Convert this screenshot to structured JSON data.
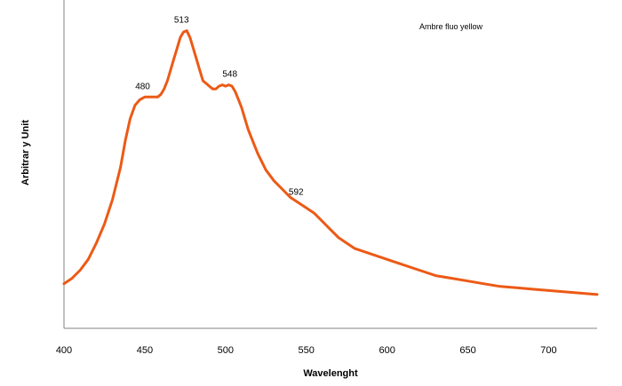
{
  "chart_data": {
    "type": "line",
    "title": "",
    "xlabel": "Wavelenght",
    "ylabel": "Arbitrar y Unit",
    "xlim": [
      400,
      730
    ],
    "ylim": [
      0,
      1
    ],
    "x_ticks": [
      400,
      450,
      500,
      550,
      600,
      650,
      700
    ],
    "grid": false,
    "legend_position": "top-right",
    "series": [
      {
        "name": "Ambre fluo yellow",
        "color": "#ec5a16",
        "x": [
          400,
          405,
          410,
          415,
          420,
          425,
          430,
          435,
          438,
          441,
          444,
          447,
          450,
          455,
          458,
          460,
          462,
          464,
          466,
          468,
          470,
          472,
          474,
          476,
          478,
          480,
          482,
          484,
          486,
          488,
          490,
          492,
          494,
          496,
          498,
          500,
          502,
          504,
          506,
          508,
          510,
          512,
          514,
          516,
          518,
          520,
          525,
          530,
          535,
          540,
          545,
          550,
          555,
          560,
          565,
          570,
          575,
          580,
          590,
          600,
          610,
          620,
          630,
          640,
          650,
          660,
          670,
          680,
          690,
          700,
          710,
          720,
          730
        ],
        "y": [
          0.05,
          0.07,
          0.1,
          0.14,
          0.2,
          0.27,
          0.36,
          0.48,
          0.58,
          0.66,
          0.71,
          0.73,
          0.74,
          0.74,
          0.74,
          0.75,
          0.77,
          0.8,
          0.84,
          0.88,
          0.92,
          0.96,
          0.98,
          0.985,
          0.96,
          0.92,
          0.88,
          0.84,
          0.8,
          0.79,
          0.78,
          0.77,
          0.77,
          0.78,
          0.785,
          0.78,
          0.785,
          0.78,
          0.76,
          0.73,
          0.7,
          0.66,
          0.62,
          0.59,
          0.56,
          0.53,
          0.47,
          0.43,
          0.4,
          0.37,
          0.35,
          0.33,
          0.31,
          0.28,
          0.25,
          0.22,
          0.2,
          0.18,
          0.16,
          0.14,
          0.12,
          0.1,
          0.08,
          0.07,
          0.06,
          0.05,
          0.04,
          0.035,
          0.03,
          0.025,
          0.02,
          0.015,
          0.01
        ]
      }
    ],
    "annotations": [
      {
        "text": "513",
        "x": 476,
        "y": 0.985
      },
      {
        "text": "548",
        "x": 506,
        "y": 0.785
      },
      {
        "text": "480",
        "x": 452,
        "y": 0.74
      },
      {
        "text": "592",
        "x": 547,
        "y": 0.35
      }
    ]
  }
}
